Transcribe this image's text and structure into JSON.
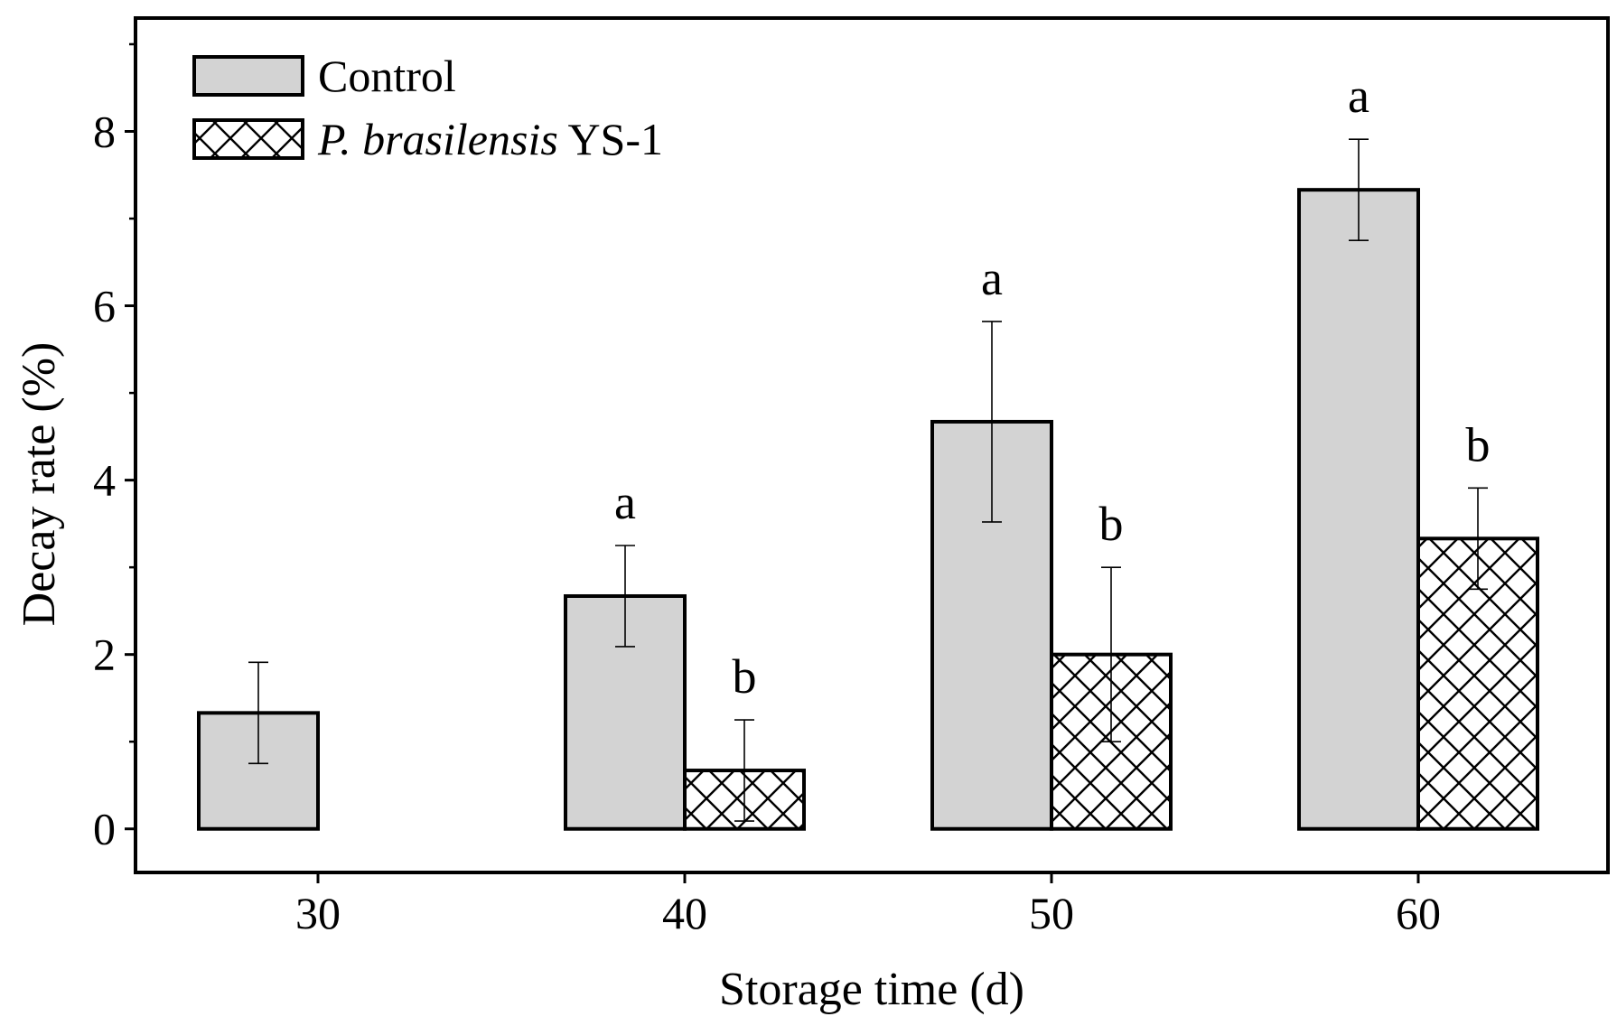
{
  "chart_data": {
    "type": "bar",
    "title": "",
    "xlabel": "Storage time (d)",
    "ylabel": "Decay rate (%)",
    "categories": [
      "30",
      "40",
      "50",
      "60"
    ],
    "ylim": [
      -0.5,
      9.3
    ],
    "yticks": [
      "0",
      "2",
      "4",
      "6",
      "8"
    ],
    "grid": false,
    "legend_position": "top-left",
    "series": [
      {
        "name": "Control",
        "values": [
          1.33,
          2.67,
          4.67,
          7.33
        ],
        "errors": [
          0.58,
          0.58,
          1.15,
          0.58
        ],
        "letters": [
          "",
          "a",
          "a",
          "a"
        ],
        "fill": "#d3d3d3",
        "pattern": "solid"
      },
      {
        "name_italic": "P. brasilensis",
        "name_suffix": " YS-1",
        "values": [
          0.0,
          0.67,
          2.0,
          3.33
        ],
        "errors": [
          0.0,
          0.58,
          1.0,
          0.58
        ],
        "letters": [
          "",
          "b",
          "b",
          "b"
        ],
        "fill": "#ffffff",
        "pattern": "crosshatch"
      }
    ]
  }
}
